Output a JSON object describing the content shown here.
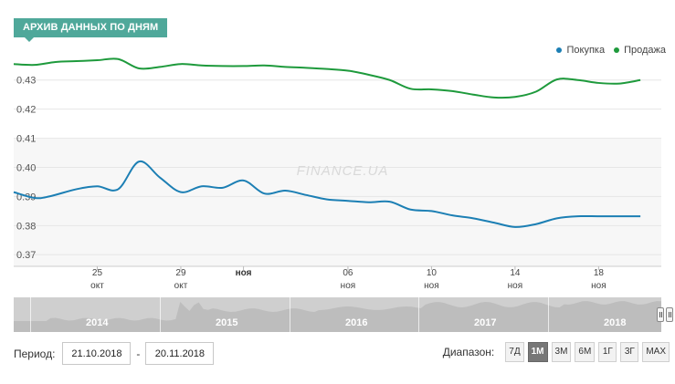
{
  "header": {
    "title": "АРХИВ ДАННЫХ ПО ДНЯМ"
  },
  "watermark": "FINANCE.UA",
  "colors": {
    "buy": "#1c7fb4",
    "sell": "#1e9a3c",
    "accent": "#4fa89a"
  },
  "chart_data": {
    "type": "line",
    "ylim": [
      0.366,
      0.4365
    ],
    "yticks": [
      "0.37",
      "0.38",
      "0.39",
      "0.40",
      "0.41",
      "0.42",
      "0.43"
    ],
    "ytick_values": [
      0.37,
      0.38,
      0.39,
      0.4,
      0.41,
      0.42,
      0.43
    ],
    "xlim": [
      21.0,
      52.0
    ],
    "xticks": [
      {
        "x": 25,
        "day": "25",
        "month": "окт"
      },
      {
        "x": 29,
        "day": "29",
        "month": "окт"
      },
      {
        "x": 32,
        "day": "",
        "month": "ноя",
        "bold": true
      },
      {
        "x": 37,
        "day": "06",
        "month": "ноя"
      },
      {
        "x": 41,
        "day": "10",
        "month": "ноя"
      },
      {
        "x": 45,
        "day": "14",
        "month": "ноя"
      },
      {
        "x": 49,
        "day": "18",
        "month": "ноя"
      }
    ],
    "legend_position": "top-right",
    "series": [
      {
        "name": "Покупка",
        "color": "#1c7fb4",
        "x": [
          21,
          22,
          22.7,
          24,
          25,
          26,
          27,
          28,
          29,
          30,
          31,
          32,
          33,
          34,
          35,
          36,
          37,
          38,
          39,
          40,
          41,
          42,
          43,
          44,
          45,
          46,
          47,
          48,
          49,
          50,
          51
        ],
        "y": [
          0.3915,
          0.3895,
          0.39,
          0.3925,
          0.3935,
          0.3925,
          0.402,
          0.3965,
          0.3915,
          0.3935,
          0.393,
          0.3955,
          0.391,
          0.392,
          0.3905,
          0.389,
          0.3885,
          0.388,
          0.3882,
          0.3855,
          0.385,
          0.3835,
          0.3825,
          0.381,
          0.3795,
          0.3805,
          0.3825,
          0.3832,
          0.3832,
          0.3832,
          0.3832
        ]
      },
      {
        "name": "Продажа",
        "color": "#1e9a3c",
        "x": [
          21,
          22,
          23,
          24,
          25,
          26,
          27,
          28,
          29,
          30,
          31,
          32,
          33,
          34,
          35,
          36,
          37,
          38,
          39,
          40,
          41,
          42,
          43,
          44,
          45,
          46,
          47,
          48,
          49,
          50,
          51
        ],
        "y": [
          0.4355,
          0.4352,
          0.4362,
          0.4365,
          0.4368,
          0.4372,
          0.434,
          0.4345,
          0.4355,
          0.435,
          0.4348,
          0.4348,
          0.435,
          0.4345,
          0.4342,
          0.4338,
          0.4332,
          0.4318,
          0.43,
          0.427,
          0.4268,
          0.4262,
          0.425,
          0.424,
          0.4242,
          0.426,
          0.4302,
          0.43,
          0.429,
          0.4288,
          0.43
        ]
      }
    ]
  },
  "navigator": {
    "years": [
      "2014",
      "2015",
      "2016",
      "2017",
      "2018"
    ]
  },
  "period": {
    "label": "Период:",
    "from": "21.10.2018",
    "separator": "-",
    "to": "20.11.2018"
  },
  "range": {
    "label": "Диапазон:",
    "buttons": [
      "7Д",
      "1М",
      "3М",
      "6М",
      "1Г",
      "3Г",
      "MAX"
    ],
    "active": "1М"
  }
}
